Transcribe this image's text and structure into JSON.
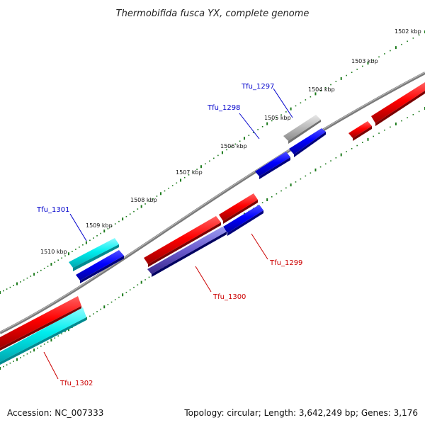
{
  "title": "Thermobifida fusca YX, complete genome",
  "ticks": [
    "1502 kbp",
    "1503 kbp",
    "1504 kbp",
    "1505 kbp",
    "1506 kbp",
    "1507 kbp",
    "1508 kbp",
    "1509 kbp",
    "1510 kbp"
  ],
  "genes": [
    {
      "label": "Tfu_1297",
      "color": "#0000cc"
    },
    {
      "label": "Tfu_1298",
      "color": "#0000cc"
    },
    {
      "label": "Tfu_1299",
      "color": "#cc0000"
    },
    {
      "label": "Tfu_1300",
      "color": "#cc0000"
    },
    {
      "label": "Tfu_1301",
      "color": "#0000cc"
    },
    {
      "label": "Tfu_1302",
      "color": "#cc0000"
    }
  ],
  "footer": {
    "accession": "Accession: NC_007333",
    "stats": "Topology: circular; Length: 3,642,249 bp; Genes: 3,176"
  },
  "colors": {
    "forward_feature": "#ff0000",
    "reverse_feature": "#0000ff",
    "cyan_feature": "#00e5ee",
    "grey_feature": "#b0b0b0",
    "backbone": "#808080",
    "tick": "#1a7a1a"
  }
}
